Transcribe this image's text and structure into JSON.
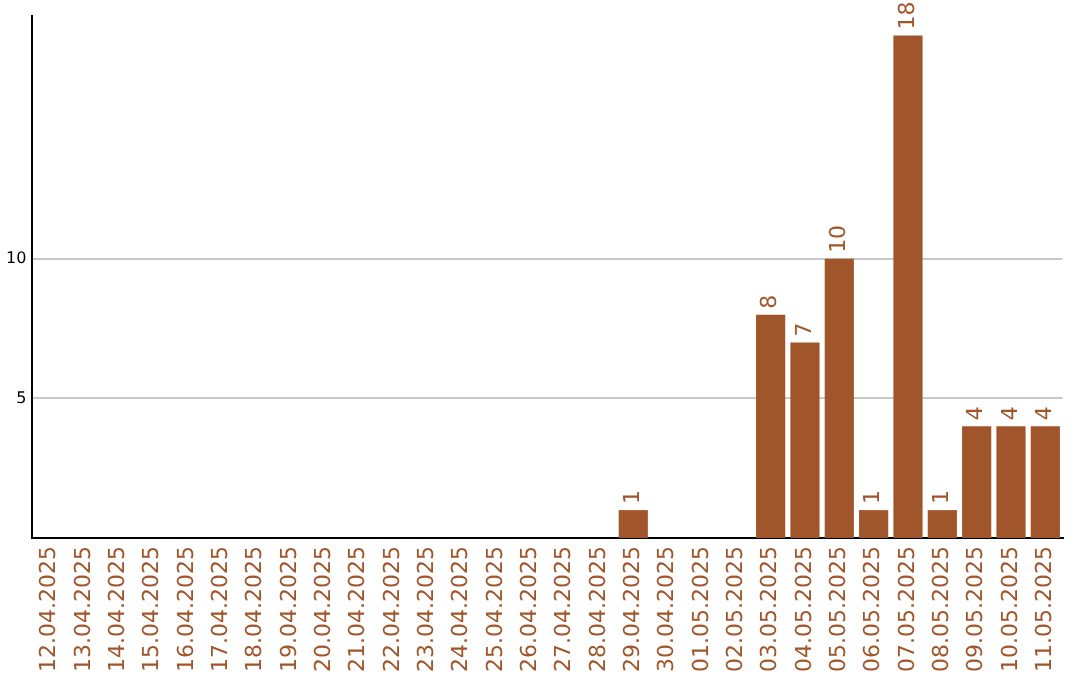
{
  "chart_data": {
    "type": "bar",
    "categories": [
      "12.04.2025",
      "13.04.2025",
      "14.04.2025",
      "15.04.2025",
      "16.04.2025",
      "17.04.2025",
      "18.04.2025",
      "19.04.2025",
      "20.04.2025",
      "21.04.2025",
      "22.04.2025",
      "23.04.2025",
      "24.04.2025",
      "25.04.2025",
      "26.04.2025",
      "27.04.2025",
      "28.04.2025",
      "29.04.2025",
      "30.04.2025",
      "01.05.2025",
      "02.05.2025",
      "03.05.2025",
      "04.05.2025",
      "05.05.2025",
      "06.05.2025",
      "07.05.2025",
      "08.05.2025",
      "09.05.2025",
      "10.05.2025",
      "11.05.2025"
    ],
    "values": [
      0,
      0,
      0,
      0,
      0,
      0,
      0,
      0,
      0,
      0,
      0,
      0,
      0,
      0,
      0,
      0,
      0,
      1,
      0,
      0,
      0,
      8,
      7,
      10,
      1,
      18,
      1,
      4,
      4,
      4
    ],
    "value_labels": [
      null,
      null,
      null,
      null,
      null,
      null,
      null,
      null,
      null,
      null,
      null,
      null,
      null,
      null,
      null,
      null,
      null,
      "1",
      null,
      null,
      null,
      "8",
      "7",
      "10",
      "1",
      "18",
      "1",
      "4",
      "4",
      "4"
    ],
    "color": "#a0562a",
    "ylim": [
      0,
      18.7
    ],
    "yticks": [
      5,
      10
    ],
    "grid": "y",
    "legend": false
  }
}
